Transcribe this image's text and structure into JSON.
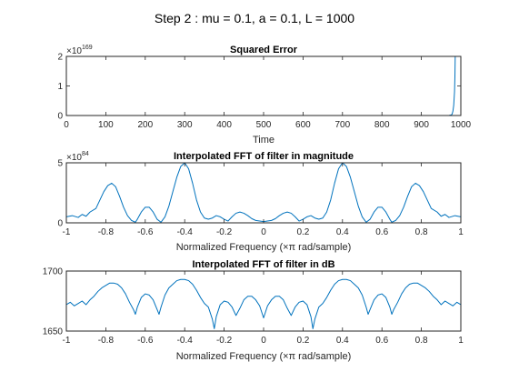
{
  "figure_title": "Step 2 : mu = 0.1, a = 0.1, L = 1000",
  "line_color": "#0072BD",
  "chart_data": [
    {
      "type": "line",
      "title": "Squared Error",
      "xlabel": "Time",
      "ylabel": "",
      "xlim": [
        0,
        1000
      ],
      "ylim": [
        0,
        2
      ],
      "exponent_base": "×10",
      "exponent": "169",
      "x_ticks": [
        0,
        100,
        200,
        300,
        400,
        500,
        600,
        700,
        800,
        900,
        1000
      ],
      "x_tick_labels": [
        "0",
        "100",
        "200",
        "300",
        "400",
        "500",
        "600",
        "700",
        "800",
        "900",
        "1000"
      ],
      "y_ticks": [
        0,
        1,
        2
      ],
      "y_tick_labels": [
        "0",
        "1",
        "2"
      ],
      "series": [
        {
          "x": [
            0,
            900,
            940,
            960,
            965,
            970,
            973,
            976,
            978,
            980,
            982,
            984,
            985,
            986,
            1000
          ],
          "y": [
            0,
            0,
            0,
            0,
            0.002,
            0.005,
            0.01,
            0.02,
            0.05,
            0.15,
            0.35,
            0.8,
            1.3,
            2.2,
            2.2
          ]
        }
      ]
    },
    {
      "type": "line",
      "title": "Interpolated FFT of filter in magnitude",
      "xlabel": "Normalized Frequency (×π rad/sample)",
      "ylabel": "",
      "xlim": [
        -1,
        1
      ],
      "ylim": [
        0,
        5
      ],
      "exponent_base": "×10",
      "exponent": "84",
      "x_ticks": [
        -1,
        -0.8,
        -0.6,
        -0.4,
        -0.2,
        0,
        0.2,
        0.4,
        0.6,
        0.8,
        1
      ],
      "x_tick_labels": [
        "-1",
        "-0.8",
        "-0.6",
        "-0.4",
        "-0.2",
        "0",
        "0.2",
        "0.4",
        "0.6",
        "0.8",
        "1"
      ],
      "y_ticks": [
        0,
        5
      ],
      "y_tick_labels": [
        "0",
        "5"
      ],
      "series": [
        {
          "x": [
            -1,
            -0.97,
            -0.94,
            -0.92,
            -0.9,
            -0.88,
            -0.85,
            -0.83,
            -0.81,
            -0.79,
            -0.77,
            -0.75,
            -0.73,
            -0.71,
            -0.69,
            -0.67,
            -0.65,
            -0.64,
            -0.62,
            -0.6,
            -0.58,
            -0.56,
            -0.54,
            -0.52,
            -0.5,
            -0.48,
            -0.46,
            -0.44,
            -0.42,
            -0.4,
            -0.38,
            -0.36,
            -0.34,
            -0.32,
            -0.3,
            -0.28,
            -0.26,
            -0.24,
            -0.22,
            -0.2,
            -0.18,
            -0.16,
            -0.14,
            -0.12,
            -0.1,
            -0.08,
            -0.06,
            -0.04,
            -0.02,
            0,
            0.02,
            0.04,
            0.06,
            0.08,
            0.1,
            0.12,
            0.14,
            0.16,
            0.18,
            0.2,
            0.22,
            0.24,
            0.26,
            0.28,
            0.3,
            0.32,
            0.34,
            0.36,
            0.38,
            0.4,
            0.42,
            0.44,
            0.46,
            0.48,
            0.5,
            0.52,
            0.54,
            0.56,
            0.58,
            0.6,
            0.62,
            0.64,
            0.65,
            0.67,
            0.69,
            0.71,
            0.73,
            0.75,
            0.77,
            0.79,
            0.81,
            0.83,
            0.85,
            0.88,
            0.9,
            0.92,
            0.94,
            0.97,
            1
          ],
          "y": [
            0.5,
            0.6,
            0.45,
            0.7,
            0.55,
            0.9,
            1.2,
            1.9,
            2.6,
            3.1,
            3.3,
            3.0,
            2.2,
            1.3,
            0.6,
            0.2,
            0.05,
            0.3,
            0.9,
            1.3,
            1.3,
            0.9,
            0.3,
            0.05,
            0.5,
            1.4,
            2.6,
            3.8,
            4.7,
            5.0,
            4.5,
            3.3,
            1.9,
            0.9,
            0.4,
            0.3,
            0.4,
            0.6,
            0.5,
            0.3,
            0.15,
            0.5,
            0.8,
            0.9,
            0.8,
            0.6,
            0.35,
            0.2,
            0.15,
            0.1,
            0.15,
            0.2,
            0.35,
            0.6,
            0.8,
            0.9,
            0.8,
            0.5,
            0.15,
            0.3,
            0.5,
            0.6,
            0.4,
            0.3,
            0.4,
            0.9,
            1.9,
            3.3,
            4.5,
            5.0,
            4.7,
            3.8,
            2.6,
            1.4,
            0.5,
            0.05,
            0.3,
            0.9,
            1.3,
            1.3,
            0.9,
            0.3,
            0.05,
            0.2,
            0.6,
            1.3,
            2.2,
            3.0,
            3.3,
            3.1,
            2.6,
            1.9,
            1.2,
            0.9,
            0.55,
            0.7,
            0.45,
            0.6,
            0.5
          ]
        }
      ]
    },
    {
      "type": "line",
      "title": "Interpolated FFT of filter in dB",
      "xlabel": "Normalized Frequency (×π rad/sample)",
      "ylabel": "",
      "xlim": [
        -1,
        1
      ],
      "ylim": [
        1650,
        1700
      ],
      "x_ticks": [
        -1,
        -0.8,
        -0.6,
        -0.4,
        -0.2,
        0,
        0.2,
        0.4,
        0.6,
        0.8,
        1
      ],
      "x_tick_labels": [
        "-1",
        "-0.8",
        "-0.6",
        "-0.4",
        "-0.2",
        "0",
        "0.2",
        "0.4",
        "0.6",
        "0.8",
        "1"
      ],
      "y_ticks": [
        1650,
        1700
      ],
      "y_tick_labels": [
        "1650",
        "1700"
      ],
      "series": [
        {
          "x": [
            -1,
            -0.98,
            -0.96,
            -0.94,
            -0.92,
            -0.9,
            -0.88,
            -0.86,
            -0.84,
            -0.82,
            -0.8,
            -0.78,
            -0.76,
            -0.74,
            -0.72,
            -0.7,
            -0.68,
            -0.66,
            -0.65,
            -0.64,
            -0.62,
            -0.6,
            -0.58,
            -0.56,
            -0.54,
            -0.53,
            -0.52,
            -0.5,
            -0.48,
            -0.46,
            -0.44,
            -0.42,
            -0.4,
            -0.38,
            -0.36,
            -0.34,
            -0.32,
            -0.3,
            -0.28,
            -0.26,
            -0.25,
            -0.24,
            -0.22,
            -0.2,
            -0.18,
            -0.16,
            -0.14,
            -0.12,
            -0.1,
            -0.08,
            -0.06,
            -0.04,
            -0.02,
            0,
            0.02,
            0.04,
            0.06,
            0.08,
            0.1,
            0.12,
            0.14,
            0.16,
            0.18,
            0.2,
            0.22,
            0.24,
            0.25,
            0.26,
            0.28,
            0.3,
            0.32,
            0.34,
            0.36,
            0.38,
            0.4,
            0.42,
            0.44,
            0.46,
            0.48,
            0.5,
            0.52,
            0.53,
            0.54,
            0.56,
            0.58,
            0.6,
            0.62,
            0.64,
            0.65,
            0.66,
            0.68,
            0.7,
            0.72,
            0.74,
            0.76,
            0.78,
            0.8,
            0.82,
            0.84,
            0.86,
            0.88,
            0.9,
            0.92,
            0.94,
            0.96,
            0.98,
            1
          ],
          "y": [
            1672,
            1674,
            1671,
            1673,
            1675,
            1672,
            1676,
            1679,
            1683,
            1686,
            1688,
            1690,
            1690,
            1689,
            1686,
            1681,
            1674,
            1668,
            1664,
            1670,
            1678,
            1681,
            1680,
            1676,
            1668,
            1664,
            1670,
            1680,
            1686,
            1689,
            1692,
            1693,
            1693,
            1692,
            1689,
            1684,
            1678,
            1673,
            1670,
            1660,
            1652,
            1662,
            1672,
            1675,
            1674,
            1670,
            1663,
            1669,
            1676,
            1679,
            1679,
            1676,
            1671,
            1661,
            1671,
            1676,
            1679,
            1679,
            1676,
            1669,
            1663,
            1670,
            1674,
            1675,
            1672,
            1662,
            1652,
            1660,
            1670,
            1673,
            1678,
            1684,
            1689,
            1692,
            1693,
            1693,
            1692,
            1689,
            1686,
            1680,
            1670,
            1664,
            1668,
            1676,
            1680,
            1681,
            1678,
            1670,
            1664,
            1668,
            1674,
            1681,
            1686,
            1689,
            1690,
            1690,
            1688,
            1686,
            1683,
            1679,
            1676,
            1672,
            1675,
            1673,
            1671,
            1674,
            1672
          ]
        }
      ]
    }
  ]
}
